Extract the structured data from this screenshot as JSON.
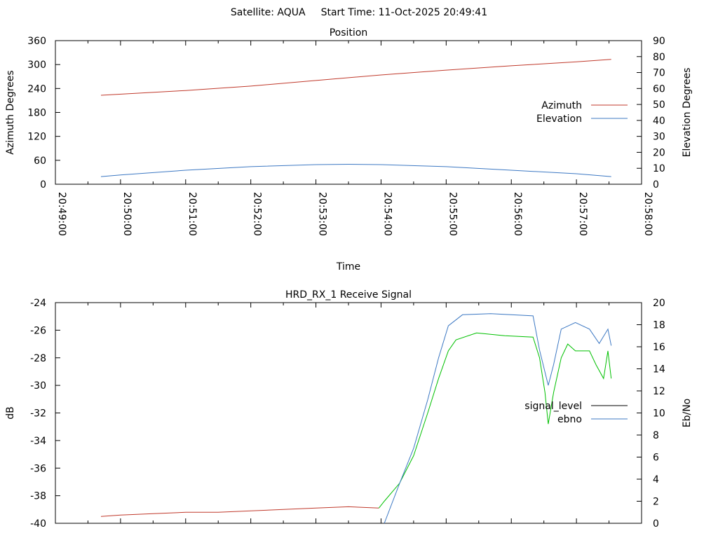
{
  "header": {
    "satellite": "Satellite: AQUA",
    "start_time": "Start Time: 11-Oct-2025 20:49:41"
  },
  "chart_data": [
    {
      "type": "line",
      "title": "Position",
      "xlabel": "Time",
      "ylabel": "Azimuth Degrees",
      "y2label": "Elevation Degrees",
      "x_unit": "seconds after 20:49:00",
      "xlim": [
        0,
        540
      ],
      "xticks": [
        "20:49:00",
        "20:50:00",
        "20:51:00",
        "20:52:00",
        "20:53:00",
        "20:54:00",
        "20:55:00",
        "20:56:00",
        "20:57:00",
        "20:58:00"
      ],
      "ylim": [
        0,
        360
      ],
      "yticks": [
        "0",
        "60",
        "120",
        "180",
        "240",
        "300",
        "360"
      ],
      "y2lim": [
        0,
        90
      ],
      "y2ticks": [
        "0",
        "10",
        "20",
        "30",
        "40",
        "50",
        "60",
        "70",
        "80",
        "90"
      ],
      "legend_position": "right",
      "series": [
        {
          "name": "Azimuth",
          "axis": "y",
          "color": "#c0392b",
          "points": [
            [
              42,
              223
            ],
            [
              120,
              235
            ],
            [
              180,
              246
            ],
            [
              240,
              260
            ],
            [
              300,
              274
            ],
            [
              360,
              286
            ],
            [
              420,
              297
            ],
            [
              480,
              307
            ],
            [
              512,
              313
            ]
          ]
        },
        {
          "name": "Elevation",
          "axis": "y2",
          "color": "#3c78c3",
          "points": [
            [
              42,
              4.8
            ],
            [
              60,
              5.8
            ],
            [
              120,
              8.8
            ],
            [
              180,
              11
            ],
            [
              240,
              12.3
            ],
            [
              270,
              12.5
            ],
            [
              300,
              12.3
            ],
            [
              360,
              11
            ],
            [
              420,
              8.8
            ],
            [
              480,
              6.6
            ],
            [
              512,
              4.8
            ]
          ]
        }
      ]
    },
    {
      "type": "line",
      "title": "HRD_RX_1 Receive Signal",
      "ylabel": "dB",
      "y2label": "Eb/No",
      "x_unit": "seconds after 20:49:00",
      "xlim": [
        0,
        540
      ],
      "ylim": [
        -40,
        -24
      ],
      "yticks": [
        "-40",
        "-38",
        "-36",
        "-34",
        "-32",
        "-30",
        "-28",
        "-26",
        "-24"
      ],
      "y2lim": [
        0,
        20
      ],
      "y2ticks": [
        "0",
        "2",
        "4",
        "6",
        "8",
        "10",
        "12",
        "14",
        "16",
        "18",
        "20"
      ],
      "legend_position": "right",
      "series": [
        {
          "name": "signal_level",
          "axis": "y",
          "legend_color": "#000000",
          "color_before": "#c0392b",
          "color_after": "#00c000",
          "color_switch_time": 300,
          "points": [
            [
              42,
              -39.5
            ],
            [
              60,
              -39.4
            ],
            [
              90,
              -39.3
            ],
            [
              120,
              -39.2
            ],
            [
              150,
              -39.2
            ],
            [
              180,
              -39.1
            ],
            [
              210,
              -39.0
            ],
            [
              240,
              -38.9
            ],
            [
              270,
              -38.8
            ],
            [
              298,
              -38.9
            ],
            [
              303,
              -38.4
            ],
            [
              317,
              -37.1
            ],
            [
              330,
              -35.1
            ],
            [
              343,
              -32.0
            ],
            [
              353,
              -29.5
            ],
            [
              362,
              -27.5
            ],
            [
              369,
              -26.7
            ],
            [
              388,
              -26.2
            ],
            [
              414,
              -26.4
            ],
            [
              440,
              -26.5
            ],
            [
              446,
              -28.0
            ],
            [
              451,
              -30.5
            ],
            [
              454,
              -32.8
            ],
            [
              459,
              -30.5
            ],
            [
              466,
              -28.0
            ],
            [
              472,
              -27.0
            ],
            [
              479,
              -27.5
            ],
            [
              492,
              -27.5
            ],
            [
              498,
              -28.5
            ],
            [
              505,
              -29.5
            ],
            [
              509,
              -27.5
            ],
            [
              512,
              -29.5
            ]
          ]
        },
        {
          "name": "ebno",
          "axis": "y2",
          "color": "#3c78c3",
          "points": [
            [
              303,
              0
            ],
            [
              317,
              3.6
            ],
            [
              330,
              6.8
            ],
            [
              343,
              11.2
            ],
            [
              353,
              15
            ],
            [
              362,
              17.9
            ],
            [
              375,
              18.9
            ],
            [
              401,
              19.0
            ],
            [
              440,
              18.8
            ],
            [
              446,
              15.7
            ],
            [
              454,
              12.5
            ],
            [
              459,
              14.4
            ],
            [
              466,
              17.6
            ],
            [
              479,
              18.2
            ],
            [
              492,
              17.6
            ],
            [
              501,
              16.3
            ],
            [
              509,
              17.6
            ],
            [
              512,
              16.1
            ]
          ]
        }
      ]
    }
  ]
}
